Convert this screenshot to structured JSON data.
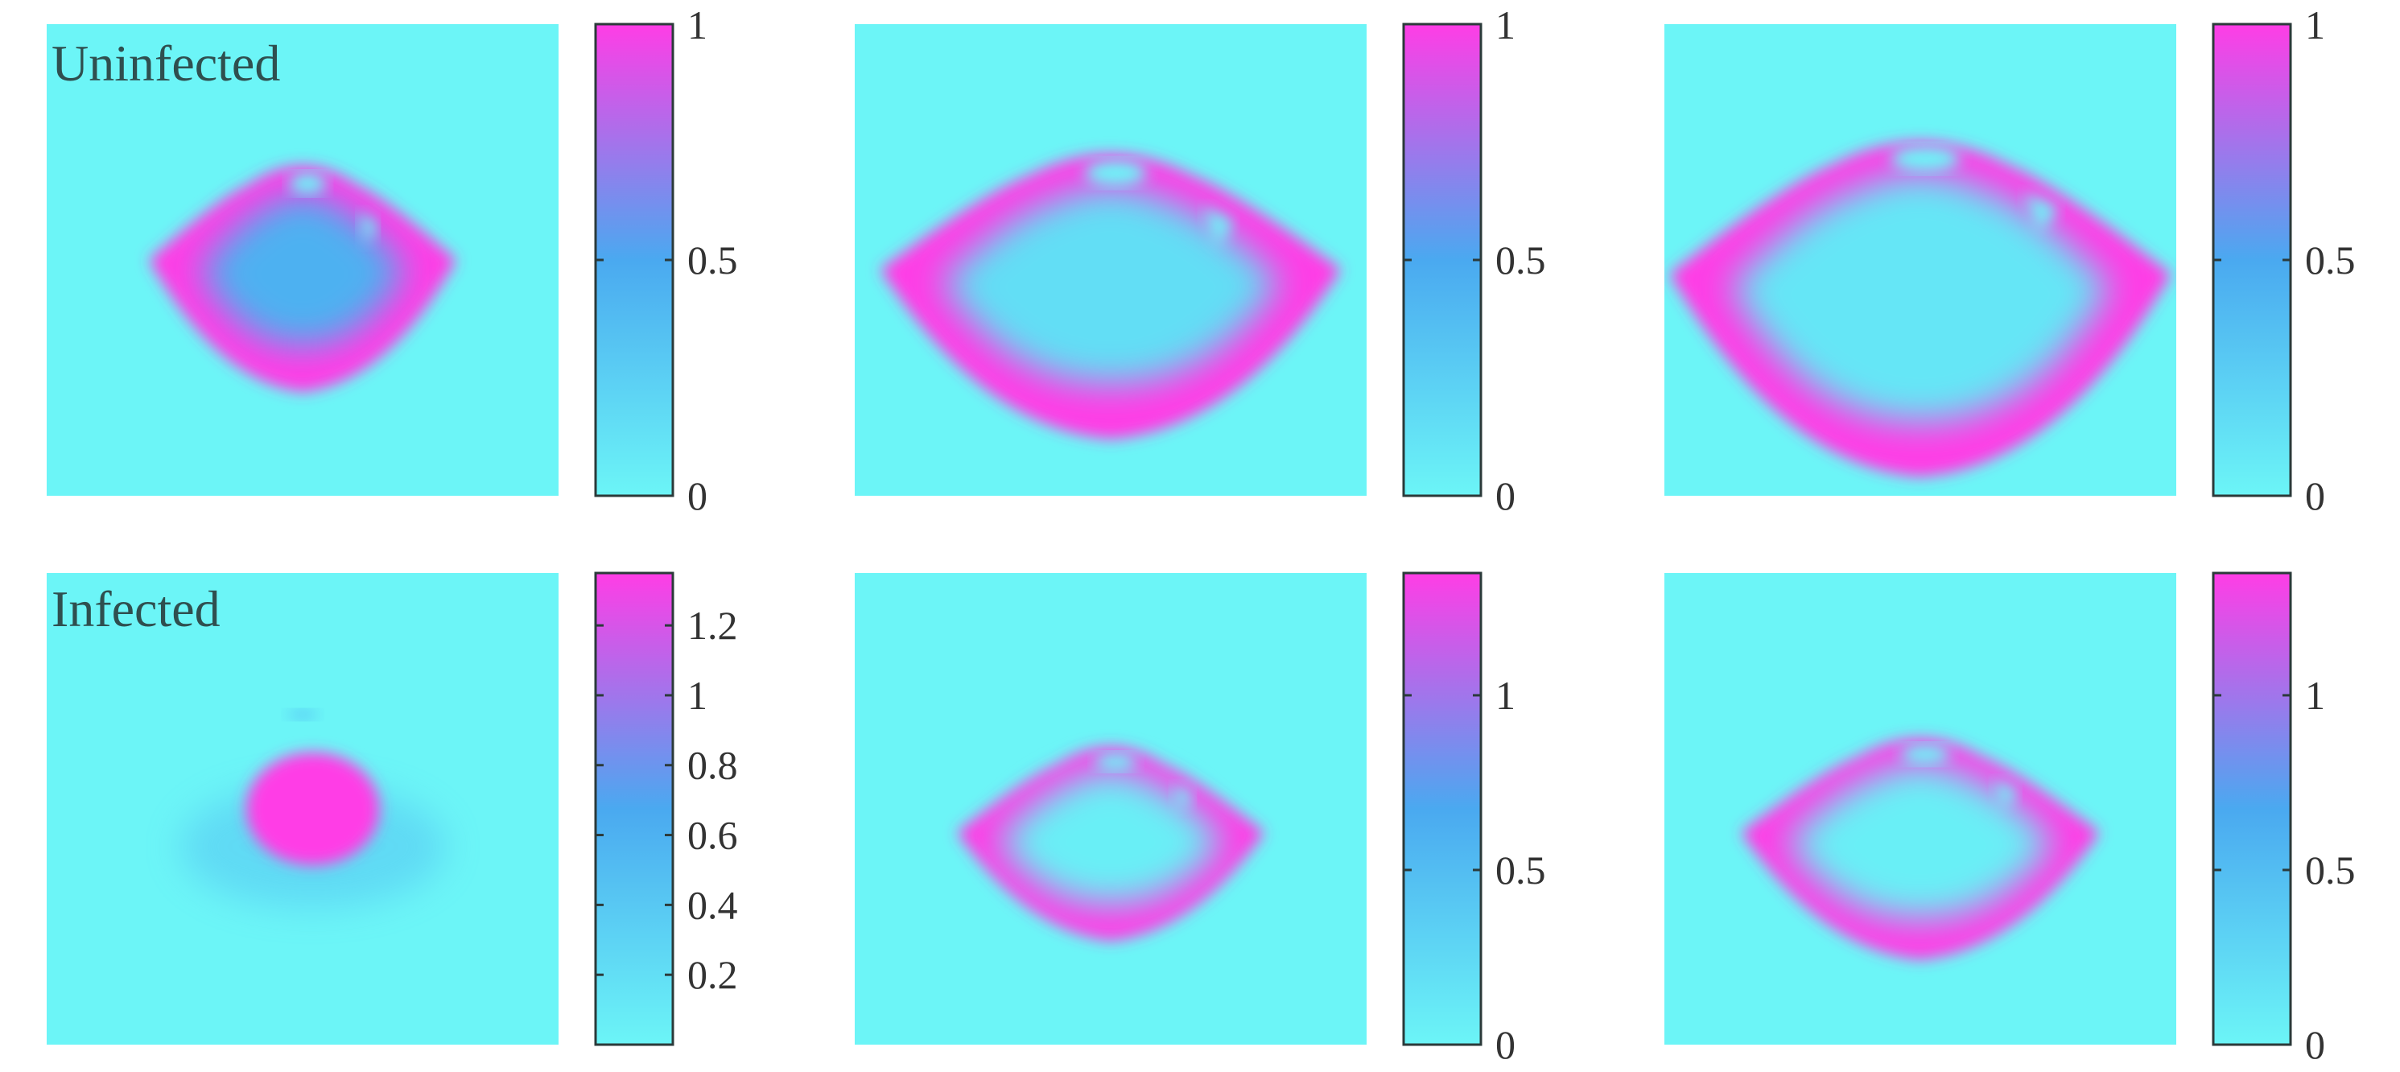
{
  "colors": {
    "low": "#6cf5f7",
    "mid": "#4aa9f0",
    "high": "#ff3de6",
    "background": "#ffffff"
  },
  "chart_data": [
    {
      "type": "heatmap",
      "row": 0,
      "col": 0,
      "panel_label": "Uninfected",
      "colorbar": {
        "range": [
          0,
          1
        ],
        "ticks": [
          0,
          0.5,
          1
        ],
        "tick_labels": [
          "0",
          "0.5",
          "1"
        ]
      },
      "pattern": {
        "cx": 0.5,
        "cy": 0.44,
        "outer_r": 0.3,
        "inner_r": 0.2,
        "top_y": 0.3,
        "bottom_y": 0.78,
        "wing_y": 0.5,
        "inner_value": 0.45
      }
    },
    {
      "type": "heatmap",
      "row": 0,
      "col": 1,
      "panel_label": "",
      "colorbar": {
        "range": [
          0,
          1
        ],
        "ticks": [
          0,
          0.5,
          1
        ],
        "tick_labels": [
          "0",
          "0.5",
          "1"
        ]
      },
      "pattern": {
        "cx": 0.5,
        "cy": 0.42,
        "outer_r": 0.45,
        "inner_r": 0.33,
        "top_y": 0.27,
        "bottom_y": 0.88,
        "wing_y": 0.52,
        "inner_value": 0.15
      }
    },
    {
      "type": "heatmap",
      "row": 0,
      "col": 2,
      "panel_label": "",
      "colorbar": {
        "range": [
          0,
          1
        ],
        "ticks": [
          0,
          0.5,
          1
        ],
        "tick_labels": [
          "0",
          "0.5",
          "1"
        ]
      },
      "pattern": {
        "cx": 0.5,
        "cy": 0.42,
        "outer_r": 0.49,
        "inner_r": 0.37,
        "top_y": 0.24,
        "bottom_y": 0.96,
        "wing_y": 0.53,
        "inner_value": 0.1
      }
    },
    {
      "type": "heatmap",
      "row": 1,
      "col": 0,
      "panel_label": "Infected",
      "colorbar": {
        "range": [
          0,
          1.35
        ],
        "ticks": [
          0.2,
          0.4,
          0.6,
          0.8,
          1,
          1.2
        ],
        "tick_labels": [
          "0.2",
          "0.4",
          "0.6",
          "0.8",
          "1",
          "1.2"
        ]
      },
      "pattern": {
        "cx": 0.52,
        "cy": 0.5,
        "outer_r": 0.13,
        "inner_r": 0.0,
        "top_y": 0.39,
        "bottom_y": 0.62,
        "wing_y": 0.55,
        "inner_value": 1.0
      }
    },
    {
      "type": "heatmap",
      "row": 1,
      "col": 1,
      "panel_label": "",
      "colorbar": {
        "range": [
          0,
          1.35
        ],
        "ticks": [
          0,
          0.5,
          1
        ],
        "tick_labels": [
          "0",
          "0.5",
          "1"
        ]
      },
      "pattern": {
        "cx": 0.5,
        "cy": 0.5,
        "outer_r": 0.3,
        "inner_r": 0.22,
        "top_y": 0.37,
        "bottom_y": 0.78,
        "wing_y": 0.55,
        "inner_value": 0.05
      }
    },
    {
      "type": "heatmap",
      "row": 1,
      "col": 2,
      "panel_label": "",
      "colorbar": {
        "range": [
          0,
          1.35
        ],
        "ticks": [
          0,
          0.5,
          1
        ],
        "tick_labels": [
          "0",
          "0.5",
          "1"
        ]
      },
      "pattern": {
        "cx": 0.5,
        "cy": 0.5,
        "outer_r": 0.35,
        "inner_r": 0.26,
        "top_y": 0.35,
        "bottom_y": 0.82,
        "wing_y": 0.55,
        "inner_value": 0.05
      }
    }
  ]
}
